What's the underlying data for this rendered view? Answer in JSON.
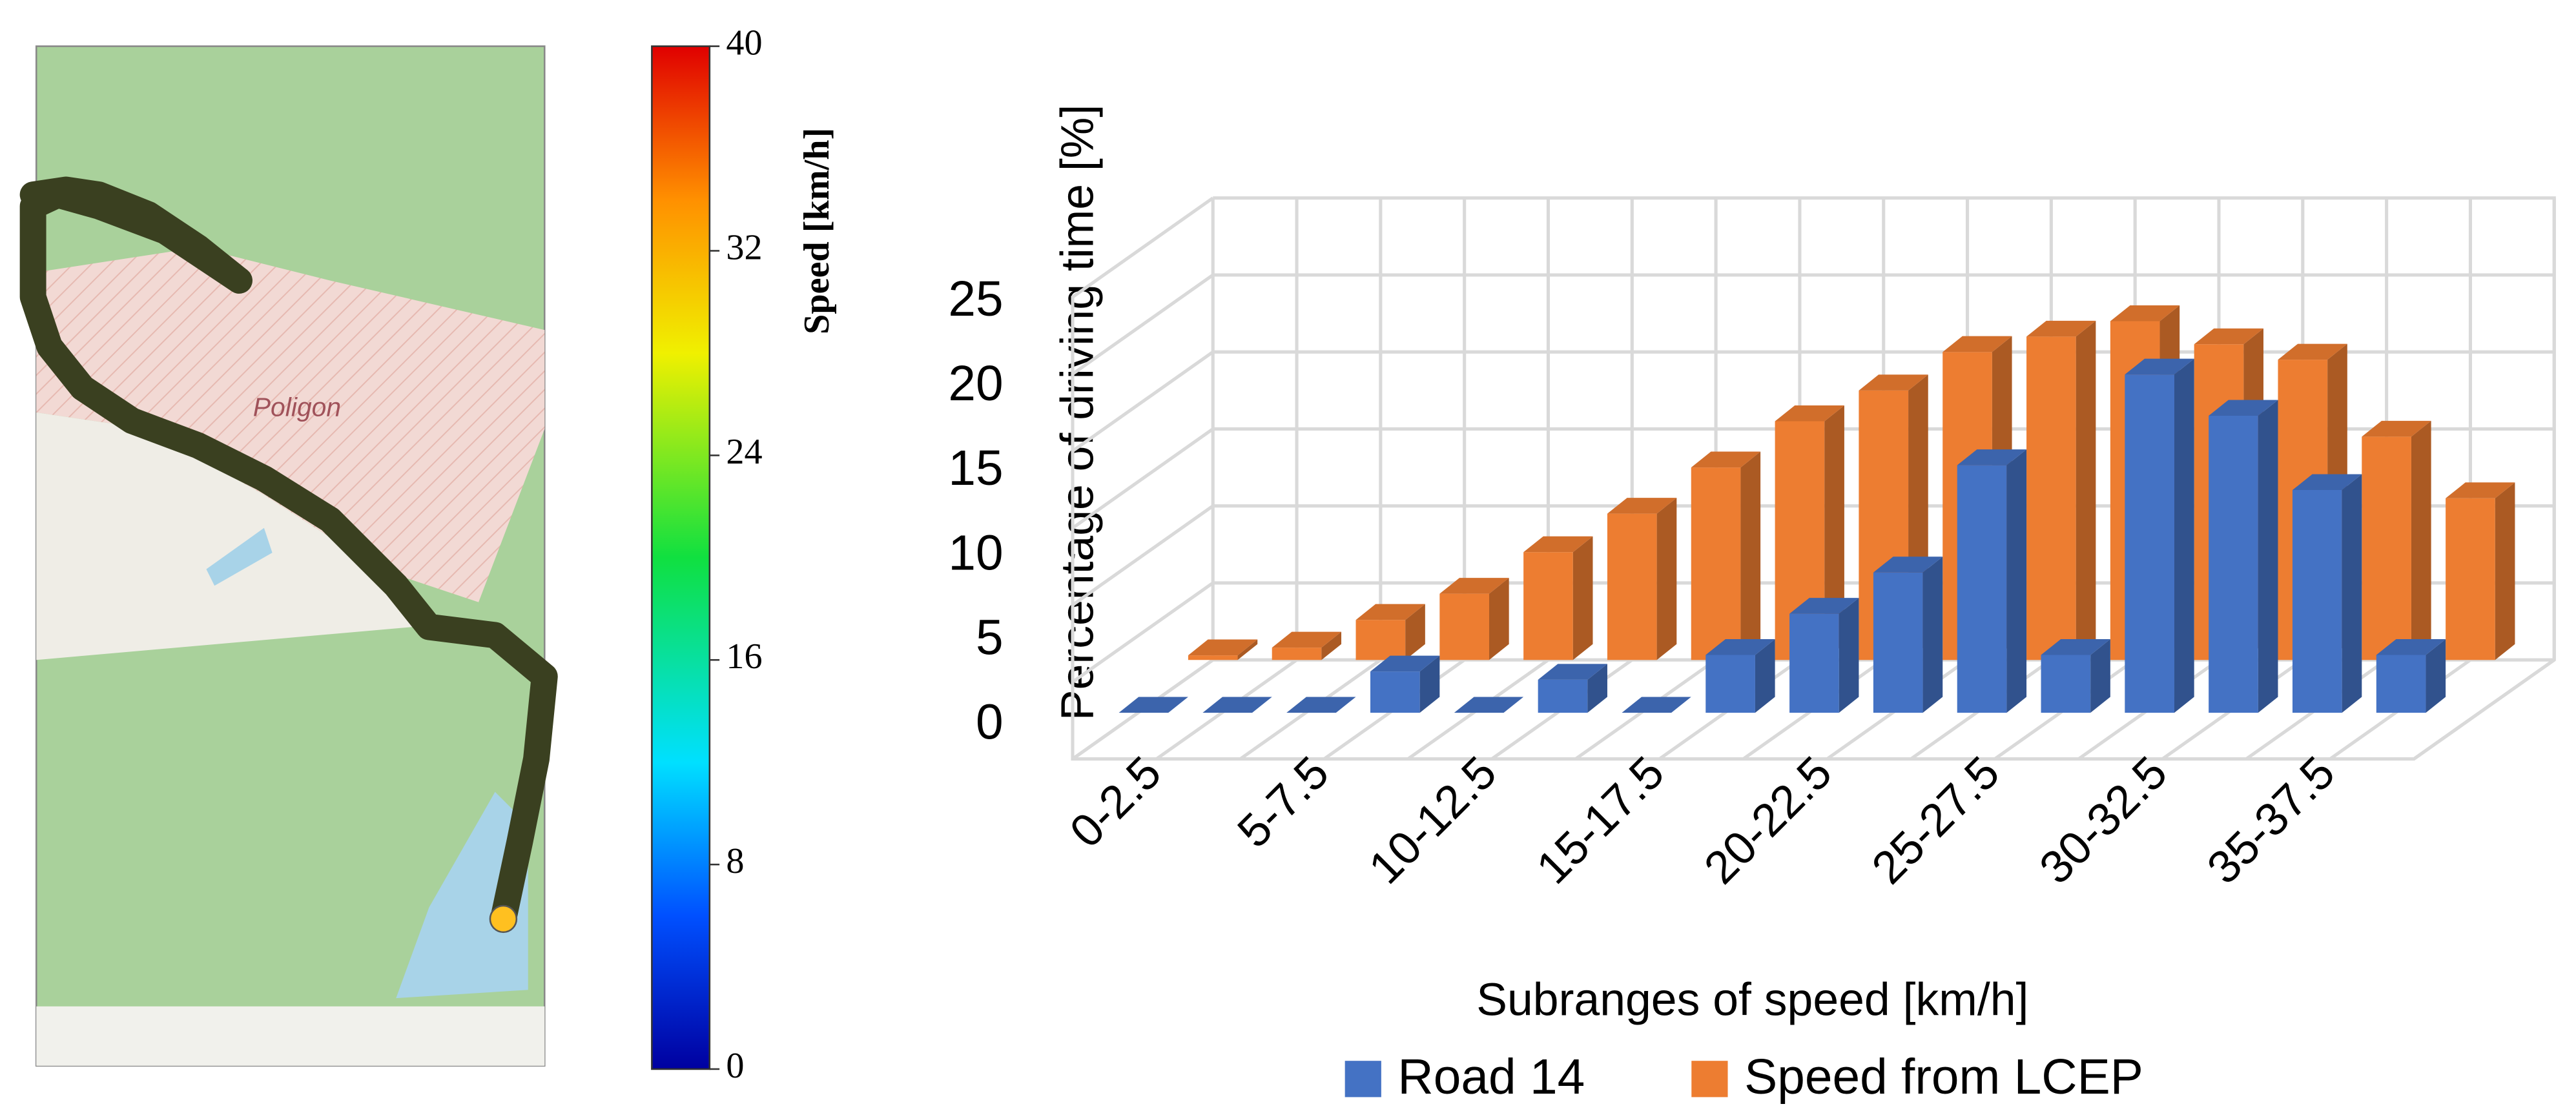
{
  "chart_data": [
    {
      "type": "map",
      "label": "Poligon",
      "colorbar": {
        "title": "Speed [km/h]",
        "lim": [
          0,
          40
        ],
        "ticks": [
          0,
          8,
          16,
          24,
          32,
          40
        ]
      }
    },
    {
      "type": "bar",
      "xlabel": "Subranges of speed [km/h]",
      "ylabel": "Percentage of driving time [%]",
      "categories": [
        "0-2.5",
        null,
        "5-7.5",
        null,
        "10-12.5",
        null,
        "15-17.5",
        null,
        "20-22.5",
        null,
        "25-27.5",
        null,
        "30-32.5",
        null,
        "35-37.5",
        null
      ],
      "series": [
        {
          "name": "Road 14",
          "color": "#4472c4",
          "values": [
            0,
            0,
            0,
            2.5,
            0,
            2,
            0,
            3.5,
            6,
            8.5,
            15,
            3.5,
            20.5,
            18,
            13.5,
            3.5
          ]
        },
        {
          "name": "Speed from LCEP",
          "color": "#ed7d31",
          "values": [
            0.3,
            0.8,
            2.6,
            4.3,
            7,
            9.5,
            12.5,
            15.5,
            17.5,
            20,
            21,
            22,
            20.5,
            19.5,
            14.5,
            10.5
          ]
        }
      ],
      "ylim": [
        0,
        30
      ],
      "yticks": [
        0,
        5,
        10,
        15,
        20,
        25
      ],
      "grid": true,
      "legend": "bottom"
    }
  ]
}
